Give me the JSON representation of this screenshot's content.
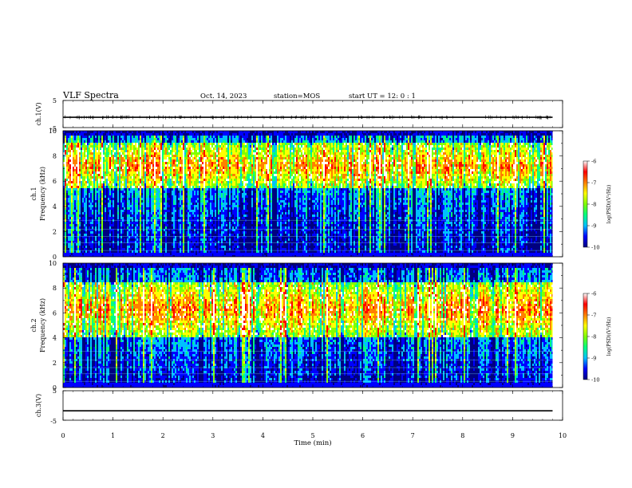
{
  "header": {
    "title": "VLF Spectra",
    "date": "Oct. 14, 2023",
    "station": "station=MOS",
    "start": "start  UT =   12: 0  : 1"
  },
  "chart_data": {
    "type": "heatmap",
    "panels": [
      {
        "name": "ch1-voltage",
        "ylabel": "ch.1(V)",
        "ylim": [
          -5,
          5
        ],
        "yticks": [
          "5",
          "-5"
        ],
        "trace_level": -1.2,
        "trace_end_min": 9.8
      },
      {
        "name": "ch1-spectrogram",
        "ylabel": "ch.1",
        "ylabel2": "Frequency (kHz)",
        "ylim": [
          0,
          10
        ],
        "yticks": [
          "0",
          "2",
          "4",
          "6",
          "8",
          "10"
        ],
        "band_low_khz": 5.5,
        "band_high_khz": 9.0,
        "band_center_khz": 7.2,
        "data_end_min": 9.8,
        "colorbar": {
          "label": "log(PSD)(V²/Hz)",
          "range": [
            -10,
            -6
          ],
          "ticks": [
            "-6",
            "-7",
            "-8",
            "-9",
            "-10"
          ]
        }
      },
      {
        "name": "ch2-spectrogram",
        "ylabel": "ch.2",
        "ylabel2": "Frequency (kHz)",
        "ylim": [
          0,
          10
        ],
        "yticks": [
          "0",
          "2",
          "4",
          "6",
          "8",
          "10"
        ],
        "band_low_khz": 4.0,
        "band_high_khz": 8.5,
        "band_center_khz": 6.3,
        "data_end_min": 9.8,
        "colorbar": {
          "label": "log(PSD)(V²/Hz)",
          "range": [
            -10,
            -6
          ],
          "ticks": [
            "-6",
            "-7",
            "-8",
            "-9",
            "-10"
          ]
        }
      },
      {
        "name": "ch3-voltage",
        "ylabel": "ch.3(V)",
        "ylim": [
          -5,
          5
        ],
        "yticks": [
          "5",
          "-5"
        ],
        "trace_level": -1.8,
        "trace_end_min": 9.8
      }
    ],
    "xlabel": "Time (min)",
    "xlim": [
      0,
      10
    ],
    "xticks": [
      "0",
      "1",
      "2",
      "3",
      "4",
      "5",
      "6",
      "7",
      "8",
      "9",
      "10"
    ],
    "colormap": [
      "#000080",
      "#0000ff",
      "#00c0ff",
      "#00ff80",
      "#80ff00",
      "#ffff00",
      "#ff8000",
      "#ff0000",
      "#ffffff"
    ]
  }
}
